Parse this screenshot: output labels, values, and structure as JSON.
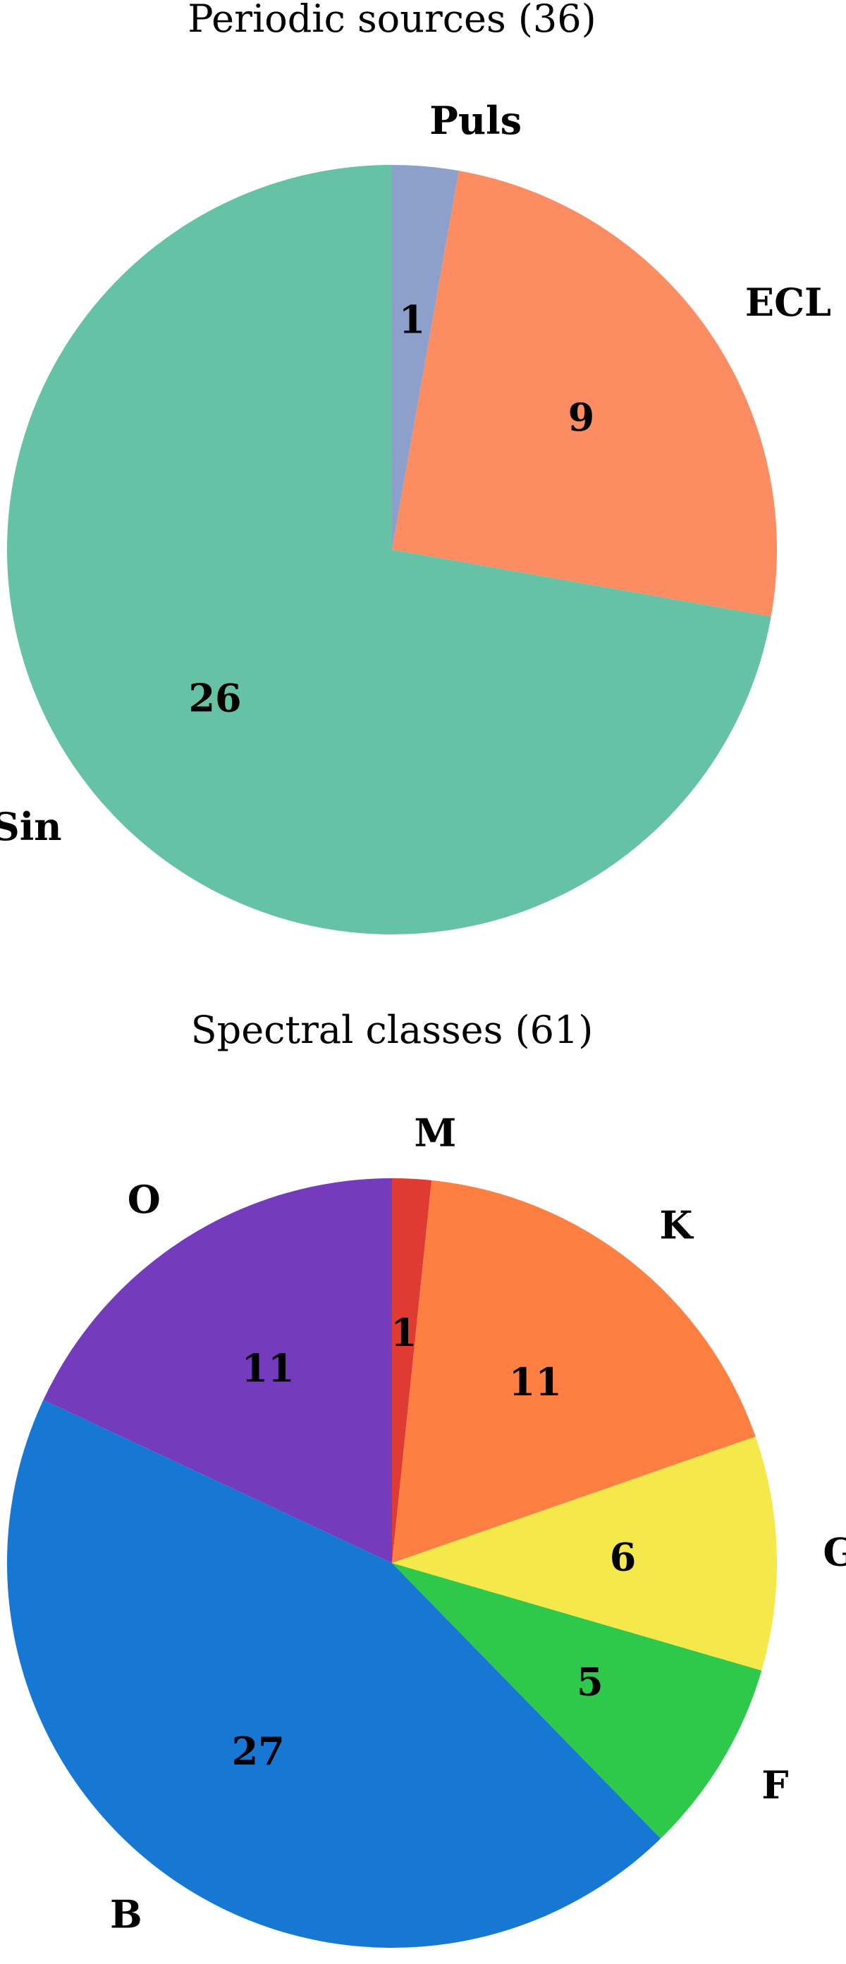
{
  "chart_data": [
    {
      "type": "pie",
      "title": "Periodic sources (36)",
      "slices": [
        {
          "label": "Puls",
          "value": 1,
          "color": "#8da0cb"
        },
        {
          "label": "ECL",
          "value": 9,
          "color": "#fc8d62"
        },
        {
          "label": "Sin",
          "value": 26,
          "color": "#66c2a5"
        }
      ],
      "start_angle_deg": 90,
      "direction": "clockwise"
    },
    {
      "type": "pie",
      "title": "Spectral classes (61)",
      "slices": [
        {
          "label": "M",
          "value": 1,
          "color": "#e03b32"
        },
        {
          "label": "K",
          "value": 11,
          "color": "#fe7f42"
        },
        {
          "label": "G",
          "value": 6,
          "color": "#f5e84a"
        },
        {
          "label": "F",
          "value": 5,
          "color": "#2ec84b"
        },
        {
          "label": "B",
          "value": 27,
          "color": "#1778d4"
        },
        {
          "label": "O",
          "value": 11,
          "color": "#753bbd"
        }
      ],
      "start_angle_deg": 90,
      "direction": "clockwise"
    }
  ]
}
